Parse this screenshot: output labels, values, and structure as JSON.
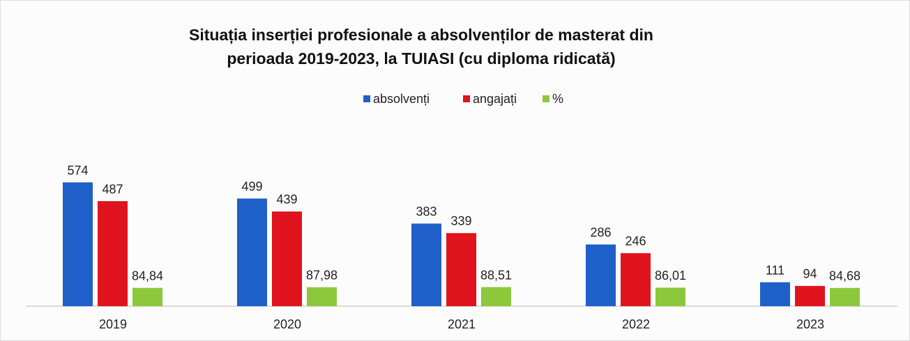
{
  "chart_data": {
    "type": "bar",
    "title": [
      "Situația inserției profesionale a absolvenților de masterat din",
      "perioada  2019-2023, la TUIASI    (cu diploma ridicată)"
    ],
    "categories": [
      "2019",
      "2020",
      "2021",
      "2022",
      "2023"
    ],
    "series": [
      {
        "name": "absolvenți",
        "color": "#1f5fc8",
        "values": [
          574,
          499,
          383,
          286,
          111
        ]
      },
      {
        "name": "angajați",
        "color": "#e0141e",
        "values": [
          487,
          439,
          339,
          246,
          94
        ]
      },
      {
        "name": "%",
        "color": "#8cc83c",
        "values": [
          84.84,
          87.98,
          88.51,
          86.01,
          84.68
        ],
        "value_labels": [
          "84,84",
          "87,98",
          "88,51",
          "86,01",
          "84,68"
        ]
      }
    ],
    "legend": "top"
  }
}
